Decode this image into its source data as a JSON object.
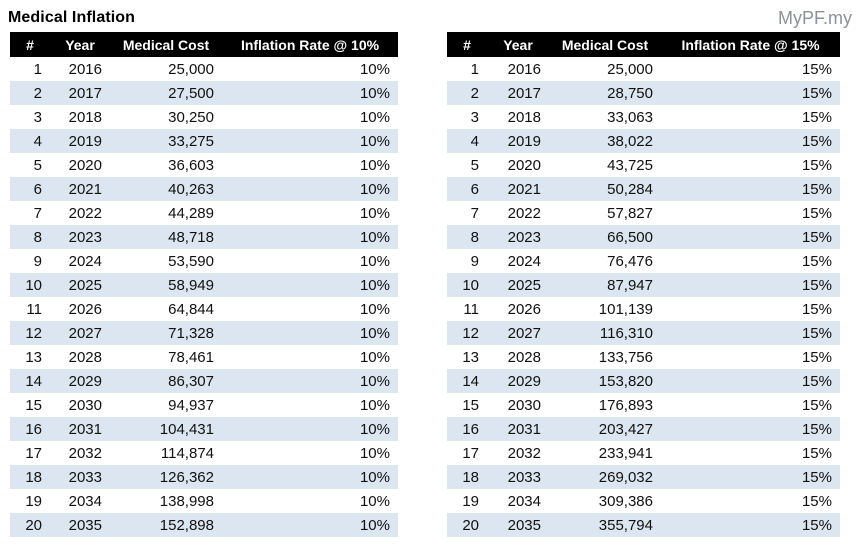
{
  "page": {
    "title": "Medical Inflation",
    "brand": "MyPF.my"
  },
  "colors": {
    "header_bg": "#000000",
    "header_text": "#ffffff",
    "row_stripe": "#dce6f1",
    "brand_text": "#8c9298",
    "text": "#111111"
  },
  "tables": [
    {
      "id": "inflation-10pct",
      "headers": [
        "#",
        "Year",
        "Medical Cost",
        "Inflation Rate @ 10%"
      ],
      "rows": [
        [
          1,
          2016,
          "25,000",
          "10%"
        ],
        [
          2,
          2017,
          "27,500",
          "10%"
        ],
        [
          3,
          2018,
          "30,250",
          "10%"
        ],
        [
          4,
          2019,
          "33,275",
          "10%"
        ],
        [
          5,
          2020,
          "36,603",
          "10%"
        ],
        [
          6,
          2021,
          "40,263",
          "10%"
        ],
        [
          7,
          2022,
          "44,289",
          "10%"
        ],
        [
          8,
          2023,
          "48,718",
          "10%"
        ],
        [
          9,
          2024,
          "53,590",
          "10%"
        ],
        [
          10,
          2025,
          "58,949",
          "10%"
        ],
        [
          11,
          2026,
          "64,844",
          "10%"
        ],
        [
          12,
          2027,
          "71,328",
          "10%"
        ],
        [
          13,
          2028,
          "78,461",
          "10%"
        ],
        [
          14,
          2029,
          "86,307",
          "10%"
        ],
        [
          15,
          2030,
          "94,937",
          "10%"
        ],
        [
          16,
          2031,
          "104,431",
          "10%"
        ],
        [
          17,
          2032,
          "114,874",
          "10%"
        ],
        [
          18,
          2033,
          "126,362",
          "10%"
        ],
        [
          19,
          2034,
          "138,998",
          "10%"
        ],
        [
          20,
          2035,
          "152,898",
          "10%"
        ]
      ]
    },
    {
      "id": "inflation-15pct",
      "headers": [
        "#",
        "Year",
        "Medical Cost",
        "Inflation Rate @ 15%"
      ],
      "rows": [
        [
          1,
          2016,
          "25,000",
          "15%"
        ],
        [
          2,
          2017,
          "28,750",
          "15%"
        ],
        [
          3,
          2018,
          "33,063",
          "15%"
        ],
        [
          4,
          2019,
          "38,022",
          "15%"
        ],
        [
          5,
          2020,
          "43,725",
          "15%"
        ],
        [
          6,
          2021,
          "50,284",
          "15%"
        ],
        [
          7,
          2022,
          "57,827",
          "15%"
        ],
        [
          8,
          2023,
          "66,500",
          "15%"
        ],
        [
          9,
          2024,
          "76,476",
          "15%"
        ],
        [
          10,
          2025,
          "87,947",
          "15%"
        ],
        [
          11,
          2026,
          "101,139",
          "15%"
        ],
        [
          12,
          2027,
          "116,310",
          "15%"
        ],
        [
          13,
          2028,
          "133,756",
          "15%"
        ],
        [
          14,
          2029,
          "153,820",
          "15%"
        ],
        [
          15,
          2030,
          "176,893",
          "15%"
        ],
        [
          16,
          2031,
          "203,427",
          "15%"
        ],
        [
          17,
          2032,
          "233,941",
          "15%"
        ],
        [
          18,
          2033,
          "269,032",
          "15%"
        ],
        [
          19,
          2034,
          "309,386",
          "15%"
        ],
        [
          20,
          2035,
          "355,794",
          "15%"
        ]
      ]
    }
  ]
}
